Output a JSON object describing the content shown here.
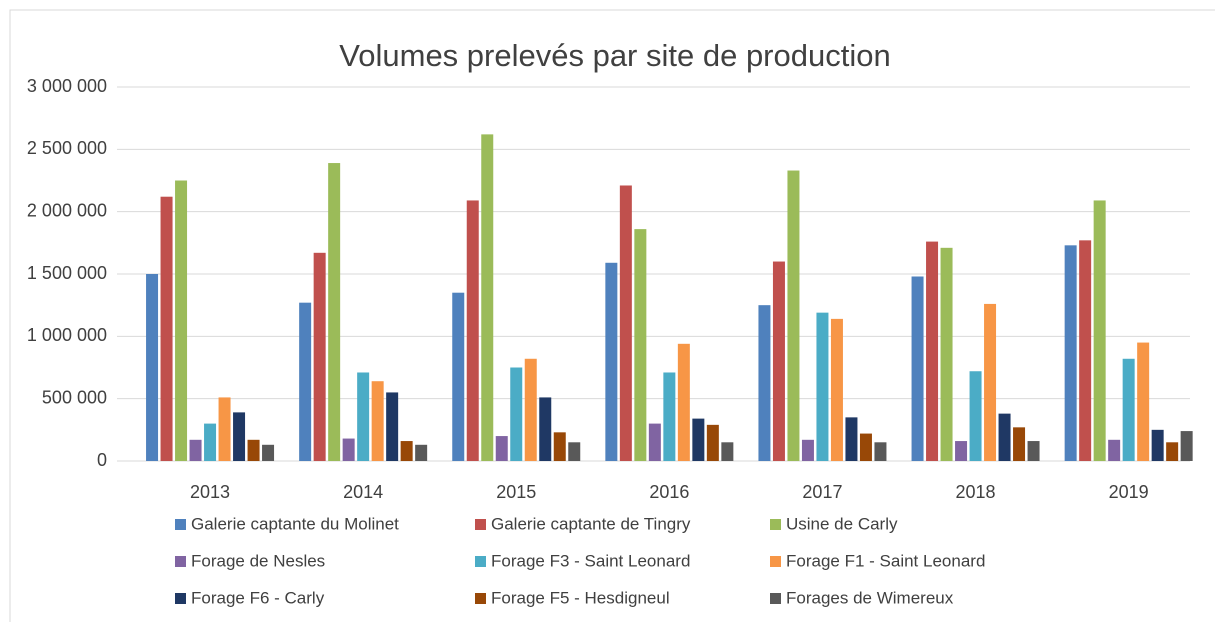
{
  "chart_data": {
    "type": "bar",
    "title": "Volumes prelevés par site de production",
    "categories": [
      "2013",
      "2014",
      "2015",
      "2016",
      "2017",
      "2018",
      "2019"
    ],
    "ylim": [
      0,
      3000000
    ],
    "yticks": [
      {
        "value": 0,
        "label": "0"
      },
      {
        "value": 500000,
        "label": "500 000"
      },
      {
        "value": 1000000,
        "label": "1 000 000"
      },
      {
        "value": 1500000,
        "label": "1 500 000"
      },
      {
        "value": 2000000,
        "label": "2 000 000"
      },
      {
        "value": 2500000,
        "label": "2 500 000"
      },
      {
        "value": 3000000,
        "label": "3 000 000"
      }
    ],
    "grid": true,
    "legend": "bottom",
    "series": [
      {
        "name": "Galerie captante du Molinet",
        "color": "#4f81bd",
        "values": [
          1500000,
          1270000,
          1350000,
          1590000,
          1250000,
          1480000,
          1730000
        ]
      },
      {
        "name": "Galerie captante de Tingry",
        "color": "#c0504d",
        "values": [
          2120000,
          1670000,
          2090000,
          2210000,
          1600000,
          1760000,
          1770000
        ]
      },
      {
        "name": "Usine de Carly",
        "color": "#9bbb59",
        "values": [
          2250000,
          2390000,
          2620000,
          1860000,
          2330000,
          1710000,
          2090000
        ]
      },
      {
        "name": "Forage de Nesles",
        "color": "#8064a2",
        "values": [
          170000,
          180000,
          200000,
          300000,
          170000,
          160000,
          170000
        ]
      },
      {
        "name": "Forage F3 - Saint Leonard",
        "color": "#4bacc6",
        "values": [
          300000,
          710000,
          750000,
          710000,
          1190000,
          720000,
          820000
        ]
      },
      {
        "name": "Forage F1 - Saint Leonard",
        "color": "#f79646",
        "values": [
          510000,
          640000,
          820000,
          940000,
          1140000,
          1260000,
          950000
        ]
      },
      {
        "name": "Forage F6 - Carly",
        "color": "#1f3864",
        "values": [
          390000,
          550000,
          510000,
          340000,
          350000,
          380000,
          250000
        ]
      },
      {
        "name": "Forage F5 - Hesdigneul",
        "color": "#984807",
        "values": [
          170000,
          160000,
          230000,
          290000,
          220000,
          270000,
          150000
        ]
      },
      {
        "name": "Forages de Wimereux",
        "color": "#595959",
        "values": [
          130000,
          130000,
          150000,
          150000,
          150000,
          160000,
          240000
        ]
      }
    ]
  }
}
